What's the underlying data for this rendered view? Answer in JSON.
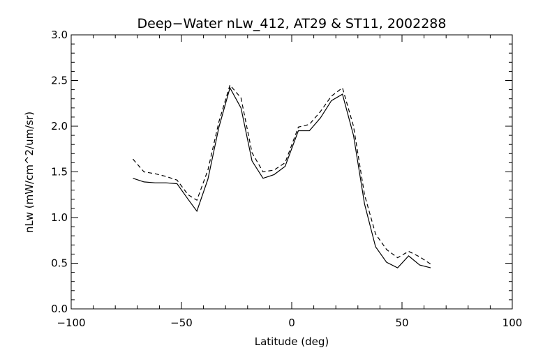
{
  "chart_data": {
    "type": "line",
    "title": "Deep−Water nLw_412, AT29 & ST11, 2002288",
    "xlabel": "Latitude (deg)",
    "ylabel": "nLw (mW/cm^2/um/sr)",
    "xlim": [
      -100,
      100
    ],
    "ylim": [
      0.0,
      3.0
    ],
    "xticks": [
      -100,
      -50,
      0,
      50,
      100
    ],
    "xtick_labels": [
      "−100",
      "−50",
      "0",
      "50",
      "100"
    ],
    "yticks": [
      0.0,
      0.5,
      1.0,
      1.5,
      2.0,
      2.5,
      3.0
    ],
    "ytick_labels": [
      "0.0",
      "0.5",
      "1.0",
      "1.5",
      "2.0",
      "2.5",
      "3.0"
    ],
    "grid": false,
    "series": [
      {
        "style": "solid",
        "x": [
          -72,
          -67,
          -62,
          -57,
          -52,
          -47,
          -43,
          -38,
          -33,
          -28,
          -23,
          -18,
          -13,
          -8,
          -3,
          3,
          8,
          13,
          18,
          23,
          28,
          33,
          38,
          43,
          48,
          53,
          58,
          63
        ],
        "y": [
          1.43,
          1.39,
          1.38,
          1.38,
          1.37,
          1.2,
          1.07,
          1.42,
          1.99,
          2.42,
          2.2,
          1.62,
          1.43,
          1.47,
          1.56,
          1.95,
          1.95,
          2.09,
          2.28,
          2.35,
          1.9,
          1.15,
          0.68,
          0.51,
          0.45,
          0.58,
          0.48,
          0.45
        ]
      },
      {
        "style": "dashed",
        "x": [
          -72,
          -67,
          -62,
          -57,
          -52,
          -47,
          -43,
          -38,
          -33,
          -28,
          -23,
          -18,
          -13,
          -8,
          -3,
          3,
          8,
          13,
          18,
          23,
          28,
          33,
          38,
          43,
          48,
          53,
          58,
          63
        ],
        "y": [
          1.64,
          1.5,
          1.48,
          1.45,
          1.41,
          1.25,
          1.19,
          1.52,
          2.05,
          2.45,
          2.31,
          1.71,
          1.5,
          1.52,
          1.6,
          1.99,
          2.02,
          2.16,
          2.33,
          2.42,
          2.0,
          1.25,
          0.82,
          0.65,
          0.56,
          0.63,
          0.57,
          0.49
        ]
      }
    ]
  }
}
